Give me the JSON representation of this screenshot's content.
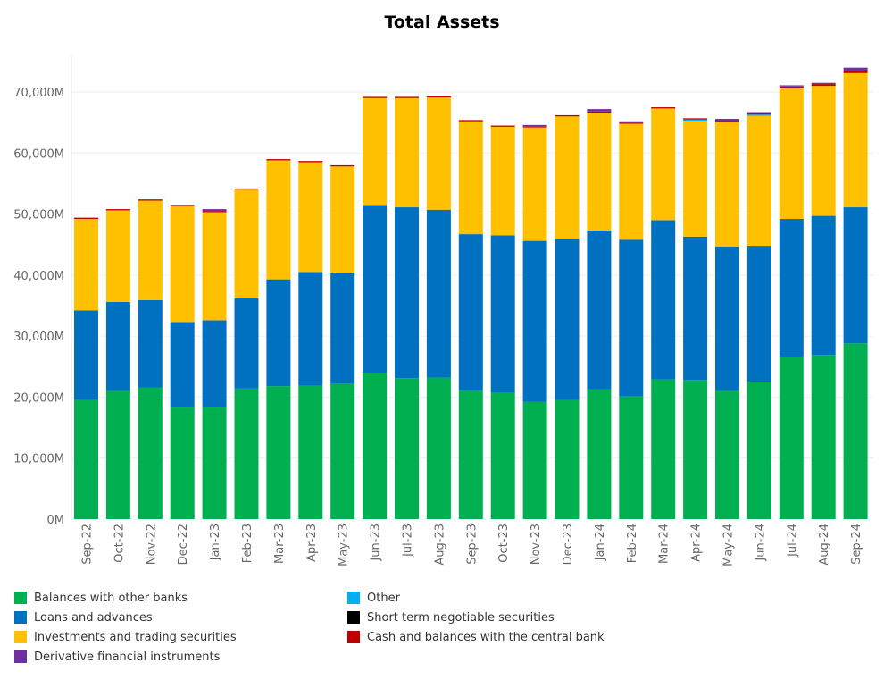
{
  "chart_data": {
    "type": "bar",
    "stacked": true,
    "title": "Total Assets",
    "xlabel": "",
    "ylabel": "",
    "ylim": [
      0,
      76000000
    ],
    "y_ticks": [
      0,
      10000000,
      20000000,
      30000000,
      40000000,
      50000000,
      60000000,
      70000000
    ],
    "y_tick_labels": [
      "0M",
      "10,000M",
      "20,000M",
      "30,000M",
      "40,000M",
      "50,000M",
      "60,000M",
      "70,000M"
    ],
    "grid": true,
    "legend_position": "bottom",
    "categories": [
      "Sep-22",
      "Oct-22",
      "Nov-22",
      "Dec-22",
      "Jan-23",
      "Feb-23",
      "Mar-23",
      "Apr-23",
      "May-23",
      "Jun-23",
      "Jul-23",
      "Aug-23",
      "Sep-23",
      "Oct-23",
      "Nov-23",
      "Dec-23",
      "Jan-24",
      "Feb-24",
      "Mar-24",
      "Apr-24",
      "May-24",
      "Jun-24",
      "Jul-24",
      "Aug-24",
      "Sep-24"
    ],
    "series": [
      {
        "name": "Balances with other banks",
        "color": "#00b050",
        "values": [
          19500000,
          21000000,
          21600000,
          18300000,
          18300000,
          21400000,
          21800000,
          21900000,
          22200000,
          24000000,
          23100000,
          23200000,
          21100000,
          20700000,
          19200000,
          19500000,
          21300000,
          20100000,
          22900000,
          22800000,
          21000000,
          22500000,
          26600000,
          26900000,
          28800000
        ]
      },
      {
        "name": "Loans and advances",
        "color": "#0070c0",
        "values": [
          14700000,
          14600000,
          14300000,
          14000000,
          14300000,
          14800000,
          17500000,
          18600000,
          18100000,
          27500000,
          28000000,
          27500000,
          25600000,
          25800000,
          26400000,
          26400000,
          26000000,
          25700000,
          26100000,
          23500000,
          23700000,
          22300000,
          22600000,
          22800000,
          22300000
        ]
      },
      {
        "name": "Investments and trading securities",
        "color": "#ffc000",
        "values": [
          15000000,
          15000000,
          16300000,
          19000000,
          17700000,
          17800000,
          19500000,
          18000000,
          17500000,
          17500000,
          17900000,
          18400000,
          18500000,
          17800000,
          18600000,
          20100000,
          19300000,
          19000000,
          18300000,
          19000000,
          20400000,
          21300000,
          21400000,
          21300000,
          22000000
        ]
      },
      {
        "name": "Other",
        "color": "#00b0f0",
        "values": [
          0,
          0,
          0,
          0,
          0,
          0,
          0,
          0,
          0,
          0,
          0,
          0,
          0,
          0,
          0,
          0,
          0,
          0,
          0,
          200000,
          0,
          200000,
          0,
          0,
          0
        ]
      },
      {
        "name": "Short term negotiable securities",
        "color": "#000000",
        "values": [
          0,
          0,
          0,
          0,
          0,
          0,
          0,
          0,
          0,
          0,
          0,
          0,
          0,
          0,
          0,
          0,
          0,
          0,
          0,
          0,
          0,
          0,
          0,
          0,
          0
        ]
      },
      {
        "name": "Cash and balances with the central bank",
        "color": "#c00000",
        "values": [
          200000,
          200000,
          200000,
          200000,
          200000,
          200000,
          200000,
          200000,
          200000,
          200000,
          200000,
          200000,
          200000,
          200000,
          200000,
          200000,
          200000,
          200000,
          200000,
          200000,
          200000,
          200000,
          300000,
          300000,
          300000
        ]
      },
      {
        "name": "Derivative financial instruments",
        "color": "#7030a0",
        "values": [
          0,
          0,
          0,
          0,
          300000,
          0,
          0,
          0,
          0,
          0,
          0,
          0,
          0,
          0,
          200000,
          0,
          400000,
          200000,
          0,
          0,
          300000,
          200000,
          200000,
          200000,
          600000
        ]
      }
    ],
    "legend_columns": [
      [
        "Balances with other banks",
        "Loans and advances",
        "Investments and trading securities",
        "Derivative financial instruments"
      ],
      [
        "Other",
        "Short term negotiable securities",
        "Cash and balances with the central bank"
      ]
    ]
  }
}
